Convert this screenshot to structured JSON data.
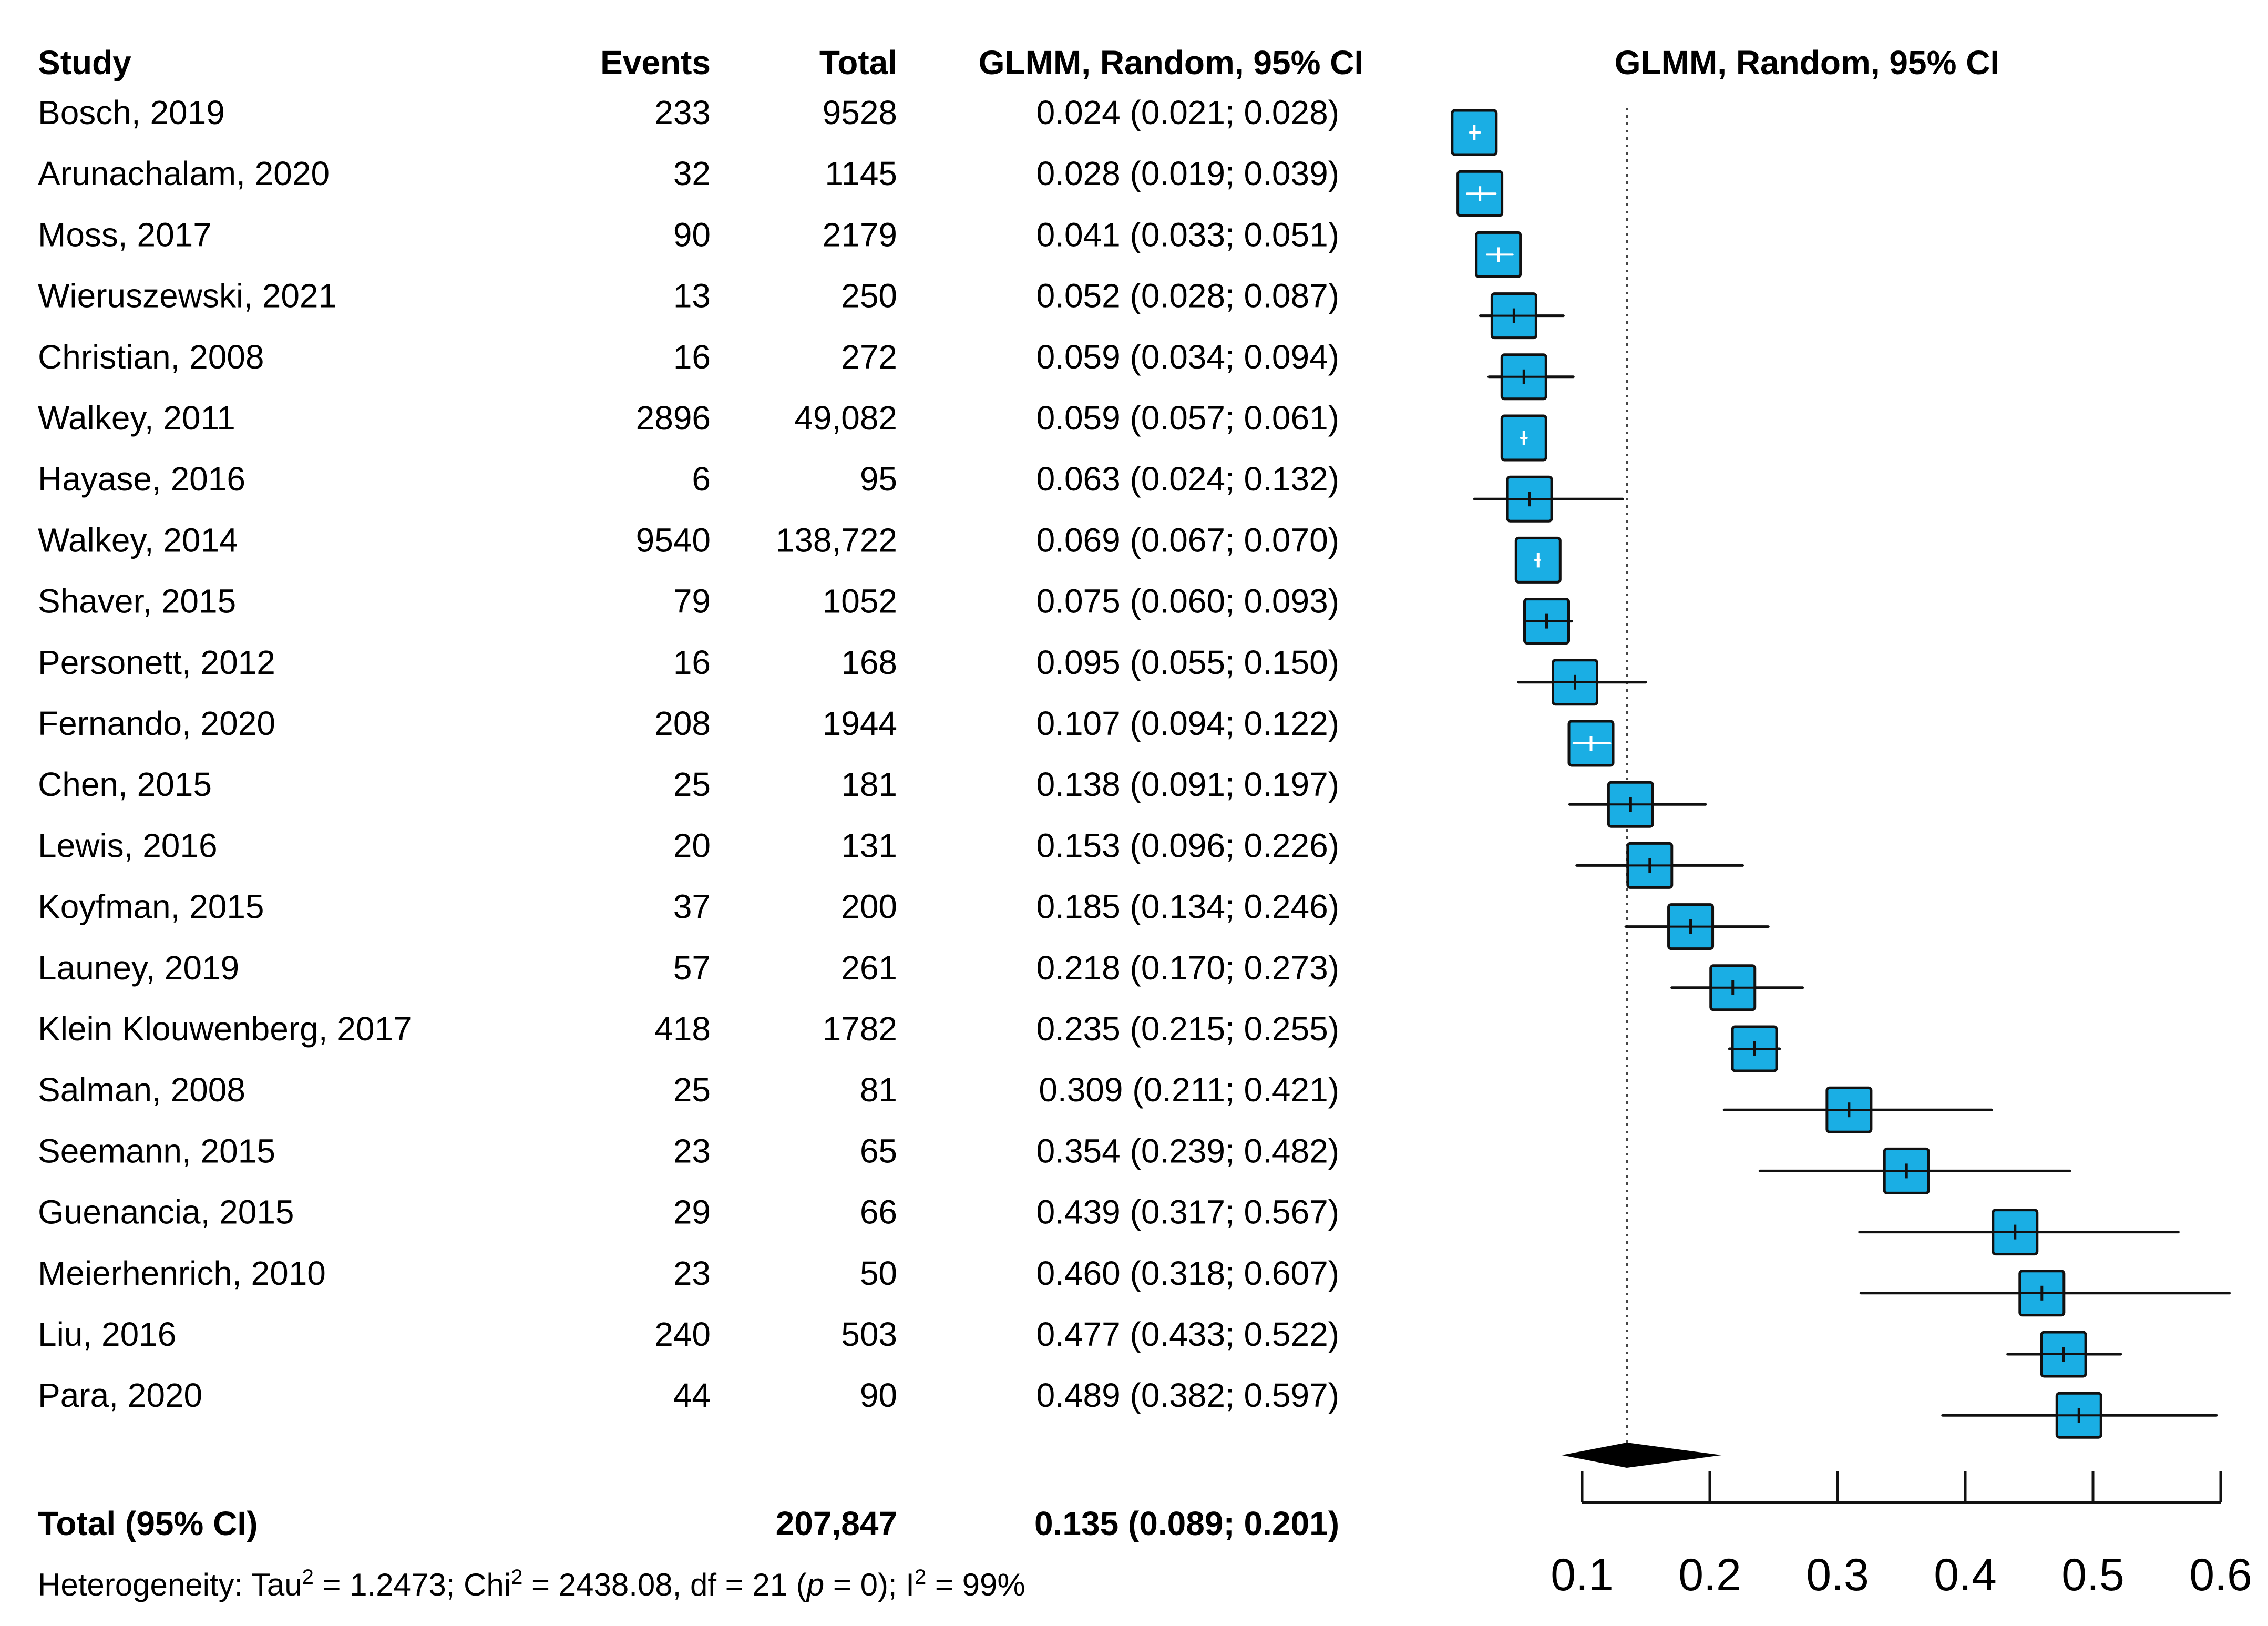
{
  "headers": {
    "study": "Study",
    "events": "Events",
    "total": "Total",
    "estimate": "GLMM, Random, 95% CI",
    "plot_title": "GLMM, Random, 95% CI"
  },
  "total_row": {
    "label": "Total (95% CI)",
    "total": "207,847",
    "estimate": "0.135 (0.089; 0.201)"
  },
  "heterogeneity": {
    "prefix": "Heterogeneity: Tau",
    "tau2": "1.2473",
    "chi2": "2438.08",
    "df": "21",
    "p_symbol": "p",
    "p_value": "0",
    "i2": "99%"
  },
  "colors": {
    "box_fill": "#1aaee4",
    "box_stroke": "#111111",
    "line": "#111111"
  },
  "chart_data": {
    "type": "forest",
    "title": "GLMM, Random, 95% CI",
    "xlim": [
      0.1,
      0.6
    ],
    "ticks": [
      0.1,
      0.2,
      0.3,
      0.4,
      0.5,
      0.6
    ],
    "tick_labels": [
      "0.1",
      "0.2",
      "0.3",
      "0.4",
      "0.5",
      "0.6"
    ],
    "reference_line": 0.135,
    "pooled": {
      "est": 0.135,
      "lo": 0.089,
      "hi": 0.201
    },
    "studies": [
      {
        "study": "Bosch, 2019",
        "events": "233",
        "total": "9528",
        "est": 0.024,
        "lo": 0.021,
        "hi": 0.028,
        "label": "0.024 (0.021; 0.028)"
      },
      {
        "study": "Arunachalam, 2020",
        "events": "32",
        "total": "1145",
        "est": 0.028,
        "lo": 0.019,
        "hi": 0.039,
        "label": "0.028 (0.019; 0.039)"
      },
      {
        "study": "Moss, 2017",
        "events": "90",
        "total": "2179",
        "est": 0.041,
        "lo": 0.033,
        "hi": 0.051,
        "label": "0.041 (0.033; 0.051)"
      },
      {
        "study": "Wieruszewski, 2021",
        "events": "13",
        "total": "250",
        "est": 0.052,
        "lo": 0.028,
        "hi": 0.087,
        "label": "0.052 (0.028; 0.087)"
      },
      {
        "study": "Christian, 2008",
        "events": "16",
        "total": "272",
        "est": 0.059,
        "lo": 0.034,
        "hi": 0.094,
        "label": "0.059 (0.034; 0.094)"
      },
      {
        "study": "Walkey, 2011",
        "events": "2896",
        "total": "49,082",
        "est": 0.059,
        "lo": 0.057,
        "hi": 0.061,
        "label": "0.059 (0.057; 0.061)"
      },
      {
        "study": "Hayase, 2016",
        "events": "6",
        "total": "95",
        "est": 0.063,
        "lo": 0.024,
        "hi": 0.132,
        "label": "0.063 (0.024; 0.132)"
      },
      {
        "study": "Walkey, 2014",
        "events": "9540",
        "total": "138,722",
        "est": 0.069,
        "lo": 0.067,
        "hi": 0.07,
        "label": "0.069 (0.067; 0.070)"
      },
      {
        "study": "Shaver, 2015",
        "events": "79",
        "total": "1052",
        "est": 0.075,
        "lo": 0.06,
        "hi": 0.093,
        "label": "0.075 (0.060; 0.093)"
      },
      {
        "study": "Personett, 2012",
        "events": "16",
        "total": "168",
        "est": 0.095,
        "lo": 0.055,
        "hi": 0.15,
        "label": "0.095 (0.055; 0.150)"
      },
      {
        "study": "Fernando, 2020",
        "events": "208",
        "total": "1944",
        "est": 0.107,
        "lo": 0.094,
        "hi": 0.122,
        "label": "0.107 (0.094; 0.122)"
      },
      {
        "study": "Chen, 2015",
        "events": "25",
        "total": "181",
        "est": 0.138,
        "lo": 0.091,
        "hi": 0.197,
        "label": "0.138 (0.091; 0.197)"
      },
      {
        "study": "Lewis, 2016",
        "events": "20",
        "total": "131",
        "est": 0.153,
        "lo": 0.096,
        "hi": 0.226,
        "label": "0.153 (0.096; 0.226)"
      },
      {
        "study": "Koyfman, 2015",
        "events": "37",
        "total": "200",
        "est": 0.185,
        "lo": 0.134,
        "hi": 0.246,
        "label": "0.185 (0.134; 0.246)"
      },
      {
        "study": "Launey, 2019",
        "events": "57",
        "total": "261",
        "est": 0.218,
        "lo": 0.17,
        "hi": 0.273,
        "label": "0.218 (0.170; 0.273)"
      },
      {
        "study": "Klein Klouwenberg, 2017",
        "events": "418",
        "total": "1782",
        "est": 0.235,
        "lo": 0.215,
        "hi": 0.255,
        "label": "0.235 (0.215; 0.255)"
      },
      {
        "study": "Salman, 2008",
        "events": "25",
        "total": "81",
        "est": 0.309,
        "lo": 0.211,
        "hi": 0.421,
        "label": "0.309 (0.211; 0.421)"
      },
      {
        "study": "Seemann, 2015",
        "events": "23",
        "total": "65",
        "est": 0.354,
        "lo": 0.239,
        "hi": 0.482,
        "label": "0.354 (0.239; 0.482)"
      },
      {
        "study": "Guenancia, 2015",
        "events": "29",
        "total": "66",
        "est": 0.439,
        "lo": 0.317,
        "hi": 0.567,
        "label": "0.439 (0.317; 0.567)"
      },
      {
        "study": "Meierhenrich, 2010",
        "events": "23",
        "total": "50",
        "est": 0.46,
        "lo": 0.318,
        "hi": 0.607,
        "label": "0.460 (0.318; 0.607)"
      },
      {
        "study": "Liu, 2016",
        "events": "240",
        "total": "503",
        "est": 0.477,
        "lo": 0.433,
        "hi": 0.522,
        "label": "0.477 (0.433; 0.522)"
      },
      {
        "study": "Para, 2020",
        "events": "44",
        "total": "90",
        "est": 0.489,
        "lo": 0.382,
        "hi": 0.597,
        "label": "0.489 (0.382; 0.597)"
      }
    ]
  }
}
